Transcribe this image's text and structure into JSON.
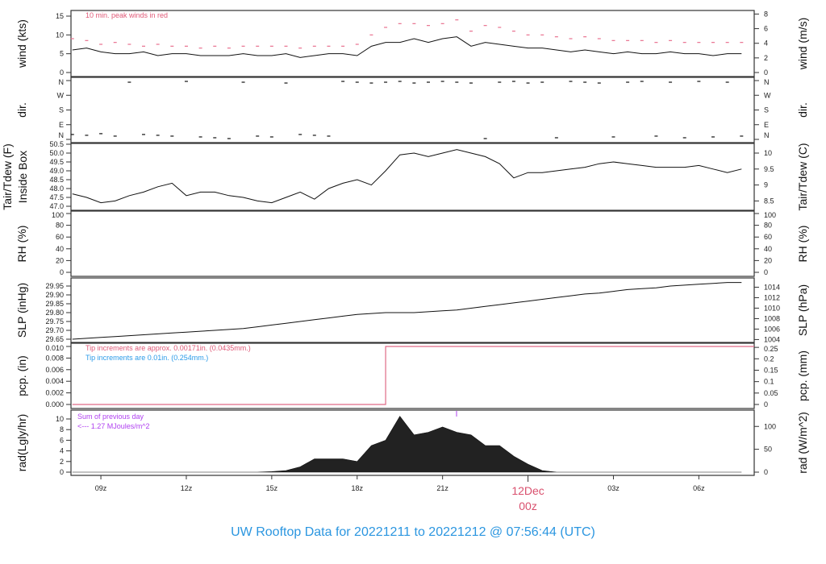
{
  "title": "UW Rooftop Data for 20221211  to  20221212 @ 07:56:44  (UTC)",
  "colors": {
    "title": "#2b96e0",
    "gust": "#e8708e",
    "pcp": "#e06a86",
    "note_red": "#e05a78",
    "note_blue": "#2b9be8",
    "note_purple": "#b040f0",
    "date_label": "#d9506e",
    "rad_fill": "#222222"
  },
  "chart_data": [
    {
      "type": "line",
      "x": [
        "08:00",
        "08:30",
        "09:00",
        "09:30",
        "10:00",
        "10:30",
        "11:00",
        "11:30",
        "12:00",
        "12:30",
        "13:00",
        "13:30",
        "14:00",
        "14:30",
        "15:00",
        "15:30",
        "16:00",
        "16:30",
        "17:00",
        "17:30",
        "18:00",
        "18:30",
        "19:00",
        "19:30",
        "20:00",
        "20:30",
        "21:00",
        "21:30",
        "22:00",
        "22:30",
        "23:00",
        "23:30",
        "00:00",
        "00:30",
        "01:00",
        "01:30",
        "02:00",
        "02:30",
        "03:00",
        "03:30",
        "04:00",
        "04:30",
        "05:00",
        "05:30",
        "06:00",
        "06:30",
        "07:00",
        "07:30"
      ],
      "xtick_labels": [
        "09z",
        "12z",
        "15z",
        "18z",
        "21z",
        "00z",
        "03z",
        "06z"
      ],
      "date_label": [
        "12Dec",
        "00z"
      ],
      "panels": [
        {
          "key": "wind",
          "ylabel": "wind (kts)",
          "ylabel_right": "wind (m/s)",
          "yticks": [
            "0",
            "5",
            "10",
            "15"
          ],
          "yticks_right": [
            "0",
            "2",
            "4",
            "6",
            "8"
          ],
          "annotation": "10 min. peak winds in red",
          "series": [
            {
              "style": "line",
              "values": [
                6,
                6.5,
                5.5,
                5,
                5,
                5.5,
                4.5,
                5,
                5,
                4.5,
                4.5,
                4.5,
                5,
                4.5,
                4.5,
                5,
                4,
                4.5,
                5,
                5,
                4.5,
                7,
                8,
                8,
                9,
                8,
                9,
                9.5,
                7,
                8,
                7.5,
                7,
                6.5,
                6.5,
                6,
                5.5,
                6,
                5.5,
                5,
                5.5,
                5,
                5,
                5.5,
                5,
                5,
                4.5,
                5,
                5
              ]
            },
            {
              "style": "gust-dashes",
              "values": [
                9,
                8.5,
                7.5,
                8,
                7.5,
                7,
                7.5,
                7,
                7,
                6.5,
                7,
                6.5,
                7,
                7,
                7,
                7,
                6.5,
                7,
                7,
                7,
                7.5,
                10,
                12,
                13,
                13,
                12.5,
                13,
                14,
                11,
                12.5,
                12,
                11,
                10,
                10,
                9.5,
                9,
                9.5,
                9,
                8.5,
                8.5,
                8.5,
                8,
                8.5,
                8,
                8,
                8,
                8,
                8
              ]
            }
          ]
        },
        {
          "key": "dir",
          "ylabel": "dir.",
          "ylabel_right": "dir.",
          "yticks": [
            "N",
            "E",
            "S",
            "W",
            "N"
          ],
          "yticks_right": [
            "N",
            "E",
            "S",
            "W",
            "N"
          ],
          "series": [
            {
              "style": "dashes",
              "values": [
                30,
                25,
                35,
                20,
                350,
                30,
                25,
                20,
                355,
                15,
                10,
                5,
                350,
                20,
                15,
                345,
                30,
                25,
                20,
                355,
                350,
                345,
                350,
                355,
                345,
                350,
                355,
                350,
                345,
                5,
                350,
                355,
                345,
                350,
                10,
                355,
                350,
                345,
                15,
                350,
                355,
                20,
                350,
                10,
                355,
                15,
                350,
                20
              ]
            }
          ]
        },
        {
          "key": "tair",
          "ylabel": "Tair/Tdew (F)",
          "ylabel2": "Inside Box",
          "ylabel_right": "Tair/Tdew (C)",
          "yticks": [
            "47.0",
            "47.5",
            "48.0",
            "48.5",
            "49.0",
            "49.5",
            "50.0",
            "50.5"
          ],
          "yticks_right": [
            "8.5",
            "9",
            "9.5",
            "10"
          ],
          "series": [
            {
              "style": "line",
              "values": [
                47.7,
                47.5,
                47.2,
                47.3,
                47.6,
                47.8,
                48.1,
                48.3,
                47.6,
                47.8,
                47.8,
                47.6,
                47.5,
                47.3,
                47.2,
                47.5,
                47.8,
                47.4,
                48.0,
                48.3,
                48.5,
                48.2,
                49.0,
                49.9,
                50.0,
                49.8,
                50.0,
                50.2,
                50.0,
                49.8,
                49.4,
                48.6,
                48.9,
                48.9,
                49.0,
                49.1,
                49.2,
                49.4,
                49.5,
                49.4,
                49.3,
                49.2,
                49.2,
                49.2,
                49.3,
                49.1,
                48.9,
                49.1
              ]
            }
          ]
        },
        {
          "key": "rh",
          "ylabel": "RH (%)",
          "ylabel_right": "RH (%)",
          "yticks": [
            "0",
            "20",
            "40",
            "60",
            "80",
            "100"
          ],
          "yticks_right": [
            "0",
            "20",
            "40",
            "60",
            "80",
            "100"
          ],
          "series": []
        },
        {
          "key": "slp",
          "ylabel": "SLP (inHg)",
          "ylabel_right": "SLP (hPa)",
          "yticks": [
            "29.65",
            "29.70",
            "29.75",
            "29.80",
            "29.85",
            "29.90",
            "29.95"
          ],
          "yticks_right": [
            "1004",
            "1006",
            "1008",
            "1010",
            "1012",
            "1014"
          ],
          "series": [
            {
              "style": "line",
              "values": [
                29.65,
                29.655,
                29.66,
                29.665,
                29.67,
                29.675,
                29.68,
                29.685,
                29.69,
                29.695,
                29.7,
                29.705,
                29.71,
                29.72,
                29.73,
                29.74,
                29.75,
                29.76,
                29.77,
                29.78,
                29.79,
                29.795,
                29.8,
                29.8,
                29.8,
                29.805,
                29.81,
                29.815,
                29.825,
                29.835,
                29.845,
                29.855,
                29.865,
                29.875,
                29.885,
                29.895,
                29.905,
                29.91,
                29.92,
                29.93,
                29.935,
                29.94,
                29.95,
                29.955,
                29.96,
                29.965,
                29.97,
                29.97
              ]
            }
          ]
        },
        {
          "key": "pcp",
          "ylabel": "pcp. (in)",
          "ylabel_right": "pcp. (mm)",
          "yticks": [
            "0.000",
            "0.002",
            "0.004",
            "0.006",
            "0.008",
            "0.010"
          ],
          "yticks_right": [
            "0",
            "0.05",
            "0.1",
            "0.15",
            "0.2",
            "0.25"
          ],
          "annotation": "Tip increments are approx. 0.00171in. (0.0435mm.)",
          "annotation2": "Tip increments are 0.01in. (0.254mm.)",
          "series": [
            {
              "style": "step",
              "values": [
                0,
                0,
                0,
                0,
                0,
                0,
                0,
                0,
                0,
                0,
                0,
                0,
                0,
                0,
                0,
                0,
                0,
                0,
                0,
                0,
                0,
                0,
                0.01,
                0.01,
                0.01,
                0.01,
                0.01,
                0.01,
                0.01,
                0.01,
                0.01,
                0.01,
                0.01,
                0.01,
                0.01,
                0.01,
                0.01,
                0.01,
                0.01,
                0.01,
                0.01,
                0.01,
                0.01,
                0.01,
                0.01,
                0.01,
                0.01,
                0.01
              ]
            }
          ]
        },
        {
          "key": "rad",
          "ylabel": "rad(Lgly/hr)",
          "ylabel_right": "rad (W/m^2)",
          "yticks": [
            "0",
            "2",
            "4",
            "6",
            "8",
            "10"
          ],
          "yticks_right": [
            "0",
            "50",
            "100"
          ],
          "annotation": "Sum of previous day",
          "annotation2": "<--- 1.27 MJoules/m^2",
          "series": [
            {
              "style": "area",
              "values": [
                0,
                0,
                0,
                0,
                0,
                0,
                0,
                0,
                0,
                0,
                0,
                0,
                0,
                0,
                0.1,
                0.3,
                1,
                2.5,
                2.5,
                2.5,
                2,
                5,
                6,
                10.5,
                7,
                7.5,
                8.5,
                7.5,
                7,
                5,
                5,
                3,
                1.5,
                0.3,
                0,
                0,
                0,
                0,
                0,
                0,
                0,
                0,
                0,
                0,
                0,
                0,
                0,
                0
              ]
            }
          ]
        }
      ]
    }
  ]
}
